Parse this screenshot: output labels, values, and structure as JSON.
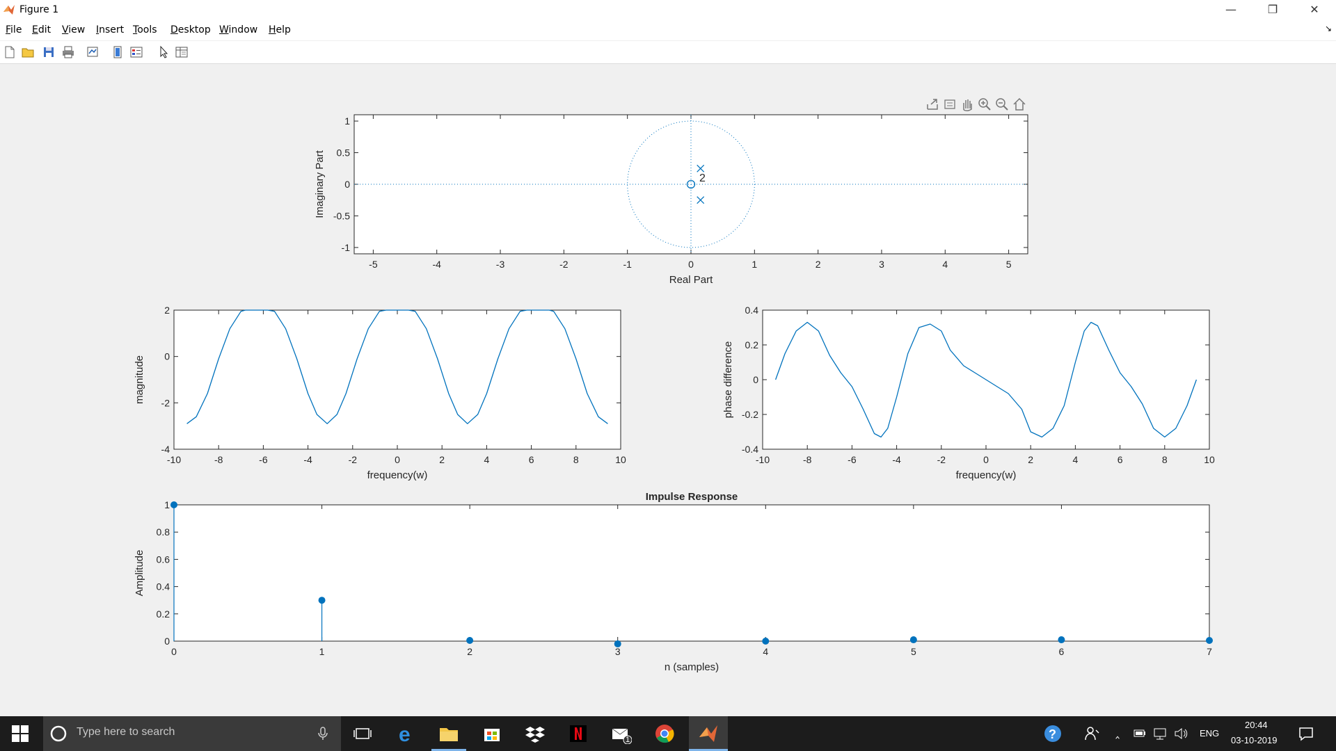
{
  "window": {
    "title": "Figure 1"
  },
  "menu": [
    {
      "label": "File",
      "u": "F",
      "rest": "ile"
    },
    {
      "label": "Edit",
      "u": "E",
      "rest": "dit"
    },
    {
      "label": "View",
      "u": "V",
      "rest": "iew"
    },
    {
      "label": "Insert",
      "u": "I",
      "rest": "nsert"
    },
    {
      "label": "Tools",
      "u": "T",
      "rest": "ools"
    },
    {
      "label": "Desktop",
      "u": "D",
      "rest": "esktop"
    },
    {
      "label": "Window",
      "u": "W",
      "rest": "indow"
    },
    {
      "label": "Help",
      "u": "H",
      "rest": "elp"
    }
  ],
  "toolbar_icons": [
    "new-figure-icon",
    "open-file-icon",
    "save-icon",
    "print-icon",
    "link-plot-icon",
    "insert-colorbar-icon",
    "insert-legend-icon",
    "edit-plot-icon",
    "property-inspector-icon"
  ],
  "axes_toolbar_icons": [
    "export-icon",
    "brush-icon",
    "pan-icon",
    "zoom-in-icon",
    "zoom-out-icon",
    "home-icon"
  ],
  "chart_data": [
    {
      "type": "scatter",
      "name": "pole-zero",
      "xlabel": "Real Part",
      "ylabel": "Imaginary Part",
      "xlim": [
        -5.3,
        5.3
      ],
      "ylim": [
        -1.1,
        1.1
      ],
      "xticks": [
        "-5",
        "-4",
        "-3",
        "-2",
        "-1",
        "0",
        "1",
        "2",
        "3",
        "4",
        "5"
      ],
      "yticks": [
        "1",
        "0.5",
        "0",
        "-0.5",
        "-1"
      ],
      "zeros": [
        {
          "x": 0,
          "y": 0,
          "multiplicity": "2"
        }
      ],
      "poles": [
        {
          "x": 0.15,
          "y": 0.25
        },
        {
          "x": 0.15,
          "y": -0.25
        }
      ],
      "unit_circle": true,
      "color": "#0072bd"
    },
    {
      "type": "line",
      "name": "magnitude",
      "xlabel": "frequency(w)",
      "ylabel": "magnitude",
      "xlim": [
        -10,
        10
      ],
      "ylim": [
        -4,
        2
      ],
      "xticks": [
        "-10",
        "-8",
        "-6",
        "-4",
        "-2",
        "0",
        "2",
        "4",
        "6",
        "8",
        "10"
      ],
      "yticks": [
        "2",
        "0",
        "-2",
        "-4"
      ],
      "x": [
        -9.42,
        -9.0,
        -8.5,
        -8.0,
        -7.5,
        -7.0,
        -6.8,
        -6.5,
        -6.28,
        -6.0,
        -5.8,
        -5.5,
        -5.0,
        -4.5,
        -4.0,
        -3.6,
        -3.14,
        -2.7,
        -2.3,
        -1.8,
        -1.3,
        -0.8,
        -0.5,
        0,
        0.5,
        0.8,
        1.3,
        1.8,
        2.3,
        2.7,
        3.14,
        3.6,
        4.0,
        4.5,
        5.0,
        5.5,
        5.8,
        6.0,
        6.28,
        6.5,
        6.8,
        7.0,
        7.5,
        8.0,
        8.5,
        9.0,
        9.42
      ],
      "values": [
        -2.9,
        -2.6,
        -1.6,
        -0.1,
        1.2,
        1.95,
        2.0,
        2.0,
        2.0,
        2.0,
        2.0,
        1.95,
        1.2,
        -0.1,
        -1.6,
        -2.5,
        -2.9,
        -2.5,
        -1.6,
        -0.1,
        1.2,
        1.95,
        2.0,
        2.0,
        2.0,
        1.95,
        1.2,
        -0.1,
        -1.6,
        -2.5,
        -2.9,
        -2.5,
        -1.6,
        -0.1,
        1.2,
        1.95,
        2.0,
        2.0,
        2.0,
        2.0,
        2.0,
        1.95,
        1.2,
        -0.1,
        -1.6,
        -2.6,
        -2.9
      ],
      "color": "#0072bd"
    },
    {
      "type": "line",
      "name": "phase",
      "xlabel": "frequency(w)",
      "ylabel": "phase difference",
      "xlim": [
        -10,
        10
      ],
      "ylim": [
        -0.4,
        0.4
      ],
      "xticks": [
        "-10",
        "-8",
        "-6",
        "-4",
        "-2",
        "0",
        "2",
        "4",
        "6",
        "8",
        "10"
      ],
      "yticks": [
        "0.4",
        "0.2",
        "0",
        "-0.2",
        "-0.4"
      ],
      "x": [
        -9.42,
        -9.0,
        -8.5,
        -8.0,
        -7.5,
        -7.0,
        -6.5,
        -6.0,
        -5.5,
        -5.0,
        -4.7,
        -4.4,
        -4.0,
        -3.5,
        -3.0,
        -2.5,
        -2.0,
        -1.6,
        -1.0,
        -0.5,
        0,
        0.5,
        1.0,
        1.6,
        2.0,
        2.5,
        3.0,
        3.5,
        4.0,
        4.4,
        4.7,
        5.0,
        5.5,
        6.0,
        6.5,
        7.0,
        7.5,
        8.0,
        8.5,
        9.0,
        9.42
      ],
      "values": [
        0.0,
        0.15,
        0.28,
        0.33,
        0.28,
        0.14,
        0.04,
        -0.04,
        -0.17,
        -0.31,
        -0.33,
        -0.28,
        -0.1,
        0.15,
        0.3,
        0.32,
        0.28,
        0.17,
        0.08,
        0.04,
        0.0,
        -0.04,
        -0.08,
        -0.17,
        -0.3,
        -0.33,
        -0.28,
        -0.15,
        0.1,
        0.28,
        0.33,
        0.31,
        0.17,
        0.04,
        -0.04,
        -0.14,
        -0.28,
        -0.33,
        -0.28,
        -0.15,
        0.0
      ],
      "color": "#0072bd"
    },
    {
      "type": "stem",
      "name": "impulse",
      "title": "Impulse Response",
      "xlabel": "n (samples)",
      "ylabel": "Amplitude",
      "xlim": [
        0,
        7
      ],
      "ylim": [
        0,
        1
      ],
      "xticks": [
        "0",
        "1",
        "2",
        "3",
        "4",
        "5",
        "6",
        "7"
      ],
      "yticks": [
        "1",
        "0.8",
        "0.6",
        "0.4",
        "0.2",
        "0"
      ],
      "x": [
        0,
        1,
        2,
        3,
        4,
        5,
        6,
        7
      ],
      "values": [
        1.0,
        0.3,
        0.005,
        -0.02,
        0.0,
        0.01,
        0.01,
        0.005
      ],
      "color": "#0072bd"
    }
  ],
  "taskbar": {
    "search_placeholder": "Type here to search",
    "apps": [
      "windows-start-icon",
      "cortana-icon",
      "microphone-icon",
      "task-view-icon",
      "edge-icon",
      "file-explorer-icon",
      "store-icon",
      "dropbox-icon",
      "netflix-icon",
      "mail-icon",
      "chrome-icon",
      "matlab-icon"
    ],
    "mail_badge": "1",
    "language": "ENG",
    "time": "20:44",
    "date": "03-10-2019"
  }
}
